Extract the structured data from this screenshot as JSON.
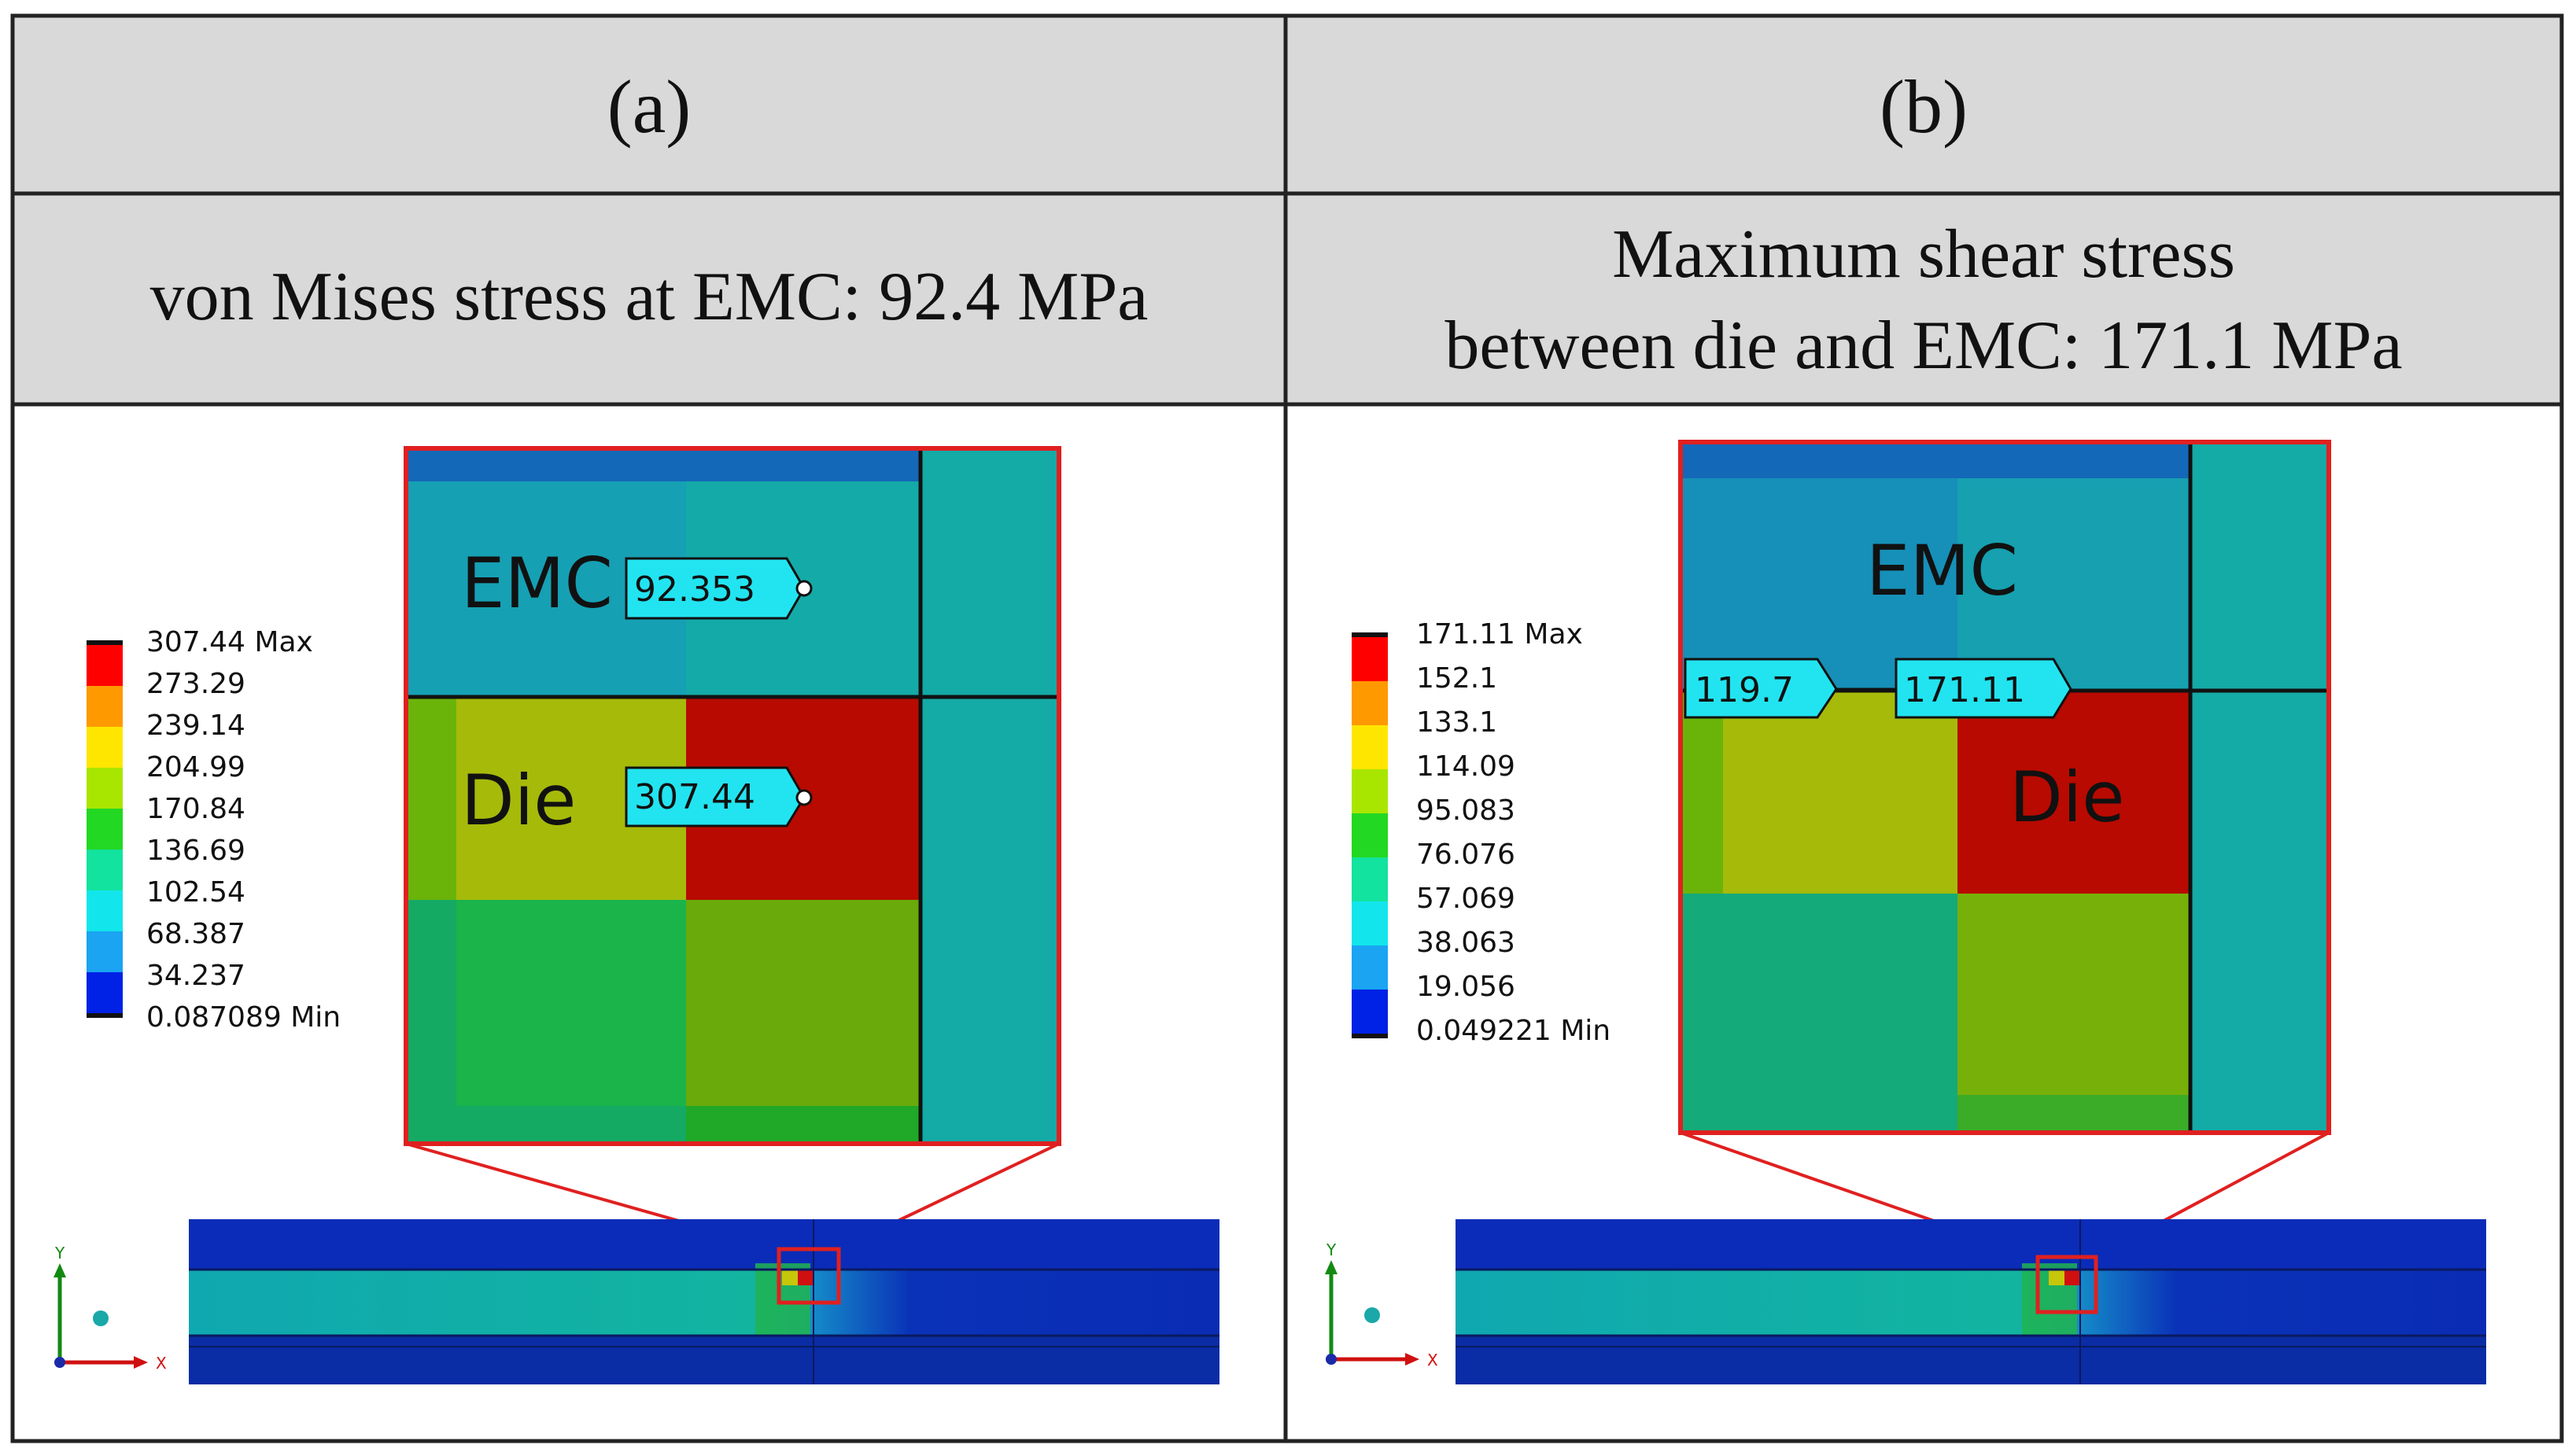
{
  "colors": {
    "header_bg": "#d9d9d9",
    "grid_line": "#222222",
    "zoom_border": "#e02020",
    "label_fill": "#22e4f0",
    "legend": [
      "#ff0000",
      "#ff9900",
      "#ffe600",
      "#a8e600",
      "#23d823",
      "#12e39e",
      "#12e6ec",
      "#1aa4f2",
      "#0022e6"
    ]
  },
  "table": {
    "panel_a": {
      "header": "(a)",
      "subtitle": "von Mises stress at EMC: 92.4 MPa"
    },
    "panel_b": {
      "header": "(b)",
      "subtitle_line1": "Maximum shear stress",
      "subtitle_line2": "between die and EMC: 171.1 MPa"
    }
  },
  "panel_a": {
    "legend_labels": [
      "307.44 Max",
      "273.29",
      "239.14",
      "204.99",
      "170.84",
      "136.69",
      "102.54",
      "68.387",
      "34.237",
      "0.087089 Min"
    ],
    "zoom": {
      "emc_label": "EMC",
      "die_label": "Die",
      "probe_emc": "92.353",
      "probe_die": "307.44"
    },
    "axes": {
      "y": "Y",
      "x": "X"
    }
  },
  "panel_b": {
    "legend_labels": [
      "171.11 Max",
      "152.1",
      "133.1",
      "114.09",
      "95.083",
      "76.076",
      "57.069",
      "38.063",
      "19.056",
      "0.049221 Min"
    ],
    "zoom": {
      "emc_label": "EMC",
      "die_label": "Die",
      "probe_left": "119.7",
      "probe_right": "171.11"
    },
    "axes": {
      "y": "Y",
      "x": "X"
    }
  }
}
